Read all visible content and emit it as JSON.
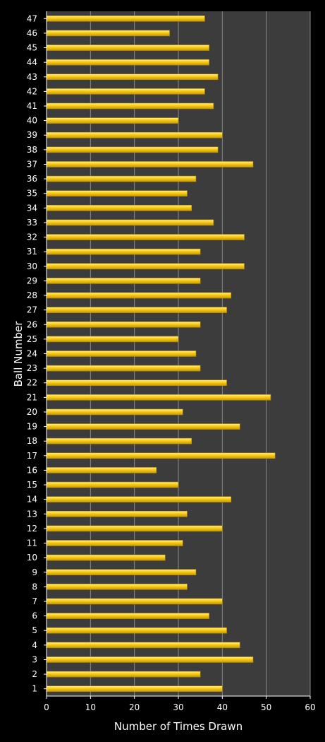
{
  "chart_data": {
    "type": "bar",
    "orientation": "horizontal",
    "title": "",
    "xlabel": "Number of Times Drawn",
    "ylabel": "Ball Number",
    "xlim": [
      0,
      60
    ],
    "x_ticks": [
      0,
      10,
      20,
      30,
      40,
      50,
      60
    ],
    "grid": "vertical major gridlines",
    "legend": "none",
    "categories": [
      "1",
      "2",
      "3",
      "4",
      "5",
      "6",
      "7",
      "8",
      "9",
      "10",
      "11",
      "12",
      "13",
      "14",
      "15",
      "16",
      "17",
      "18",
      "19",
      "20",
      "21",
      "22",
      "23",
      "24",
      "25",
      "26",
      "27",
      "28",
      "29",
      "30",
      "31",
      "32",
      "33",
      "34",
      "35",
      "36",
      "37",
      "38",
      "39",
      "40",
      "41",
      "42",
      "43",
      "44",
      "45",
      "46",
      "47"
    ],
    "values": [
      40,
      35,
      47,
      44,
      41,
      37,
      40,
      32,
      34,
      27,
      31,
      40,
      32,
      42,
      30,
      25,
      52,
      33,
      44,
      31,
      51,
      41,
      35,
      34,
      30,
      35,
      41,
      42,
      35,
      45,
      35,
      45,
      38,
      33,
      32,
      34,
      47,
      39,
      40,
      30,
      38,
      36,
      39,
      37,
      37,
      28,
      36
    ],
    "colors": {
      "bar": "#FFD21F",
      "bar_highlight": "#FFF3A0",
      "bar_shadow": "#B38900",
      "plot_background": "#3C3C3C",
      "page_background": "#000000",
      "gridline": "#8A8A8A",
      "text": "#FFFFFF"
    }
  }
}
